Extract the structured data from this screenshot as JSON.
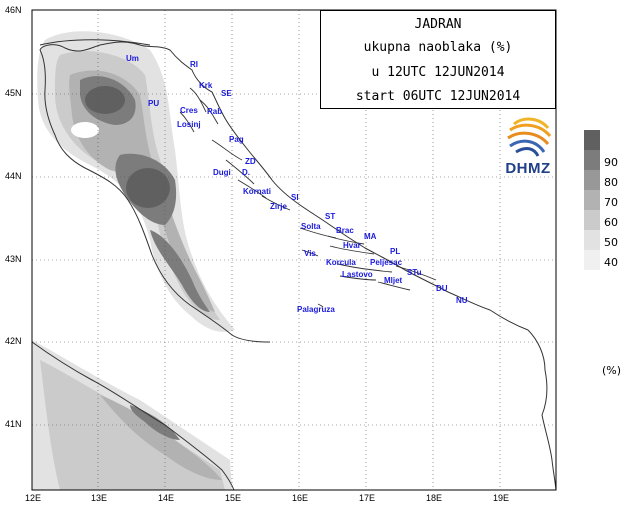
{
  "map": {
    "title": "JADRAN",
    "subtitle": "ukupna naoblaka (%)",
    "valid_time": "u 12UTC 12JUN2014",
    "start_time": "start 06UTC 12JUN2014",
    "logo_text": "DHMZ",
    "longitude_labels": [
      "12E",
      "13E",
      "14E",
      "15E",
      "16E",
      "17E",
      "18E",
      "19E"
    ],
    "latitude_labels": [
      "46N",
      "45N",
      "44N",
      "43N",
      "42N",
      "41N"
    ],
    "legend": {
      "ticks": [
        "90",
        "80",
        "70",
        "60",
        "50",
        "40"
      ],
      "unit": "(%)",
      "colors": [
        "#606060",
        "#7c7c7c",
        "#989898",
        "#b2b2b2",
        "#cbcbcb",
        "#e2e2e2"
      ]
    },
    "cities": [
      {
        "id": "um",
        "name": "Um"
      },
      {
        "id": "ri",
        "name": "RI"
      },
      {
        "id": "krk",
        "name": "Krk"
      },
      {
        "id": "se",
        "name": "SE"
      },
      {
        "id": "pu",
        "name": "PU"
      },
      {
        "id": "cres",
        "name": "Cres"
      },
      {
        "id": "rab",
        "name": "Rab"
      },
      {
        "id": "losinj",
        "name": "Losinj"
      },
      {
        "id": "pag",
        "name": "Pag"
      },
      {
        "id": "zd",
        "name": "ZD"
      },
      {
        "id": "dugi",
        "name": "Dugi"
      },
      {
        "id": "d",
        "name": "D."
      },
      {
        "id": "kornati",
        "name": "Kornati"
      },
      {
        "id": "si",
        "name": "SI"
      },
      {
        "id": "zirje",
        "name": "Zirje"
      },
      {
        "id": "st",
        "name": "ST"
      },
      {
        "id": "solta",
        "name": "Solta"
      },
      {
        "id": "brac",
        "name": "Brac"
      },
      {
        "id": "ma",
        "name": "MA"
      },
      {
        "id": "hvar",
        "name": "Hvar"
      },
      {
        "id": "vis",
        "name": "Vis"
      },
      {
        "id": "pl",
        "name": "PL"
      },
      {
        "id": "korcula",
        "name": "Korcula"
      },
      {
        "id": "peljesac",
        "name": "Peljesac"
      },
      {
        "id": "stu",
        "name": "STu"
      },
      {
        "id": "lastovo",
        "name": "Lastovo"
      },
      {
        "id": "mljet",
        "name": "Mljet"
      },
      {
        "id": "du",
        "name": "DU"
      },
      {
        "id": "nu",
        "name": "NU"
      },
      {
        "id": "palagruza",
        "name": "Palagruza"
      }
    ]
  }
}
